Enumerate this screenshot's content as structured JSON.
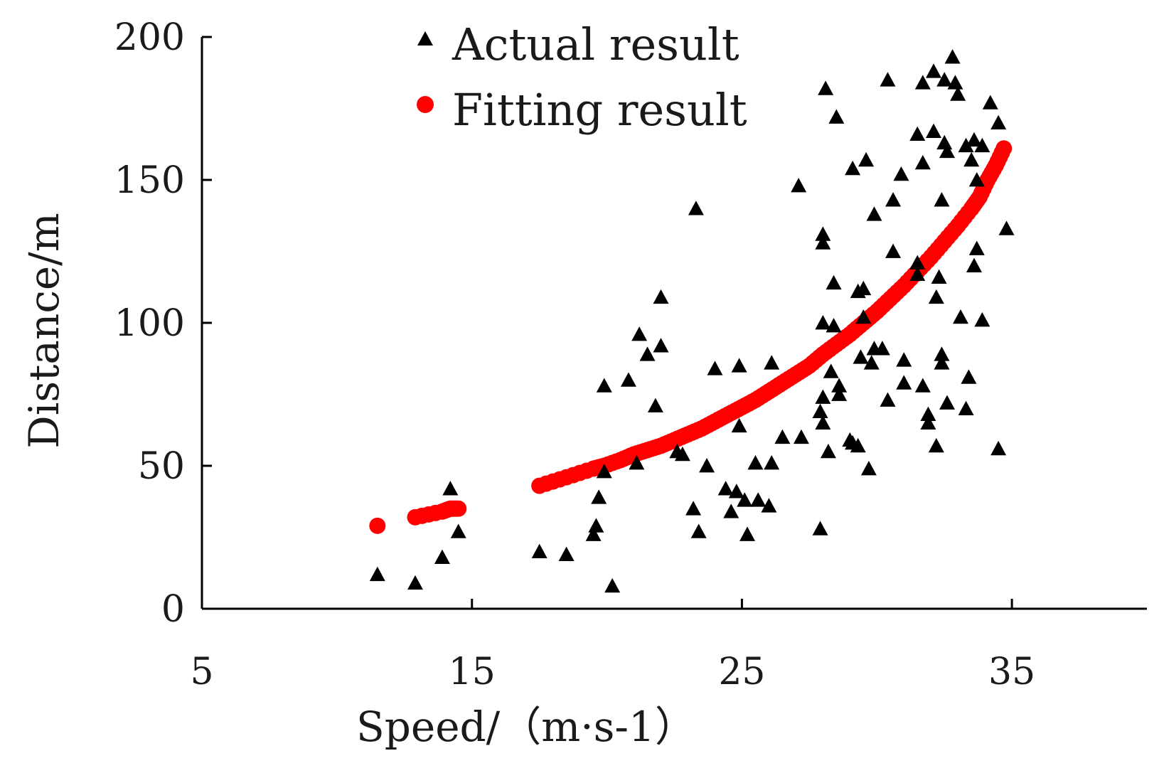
{
  "chart_data": {
    "type": "scatter",
    "title": "",
    "xlabel": "Speed/（m·s-1）",
    "ylabel": "Distance/m",
    "xlim": [
      5,
      40
    ],
    "ylim": [
      0,
      200
    ],
    "x_ticks": [
      5,
      15,
      25,
      35
    ],
    "y_ticks": [
      0,
      50,
      100,
      150,
      200
    ],
    "x_tick_labels": [
      "5",
      "15",
      "25",
      "35"
    ],
    "y_tick_labels": [
      "0",
      "50",
      "100",
      "150",
      "200"
    ],
    "grid": false,
    "legend": {
      "placement": "top-left-inside",
      "entries": [
        "Actual result",
        "Fitting result"
      ]
    },
    "series": [
      {
        "name": "Actual result",
        "marker": "triangle",
        "color": "#000000",
        "points": [
          [
            11.5,
            12
          ],
          [
            12.9,
            9
          ],
          [
            13.9,
            18
          ],
          [
            14.2,
            42
          ],
          [
            14.5,
            27
          ],
          [
            17.5,
            20
          ],
          [
            18.5,
            19
          ],
          [
            19.5,
            26
          ],
          [
            19.6,
            29
          ],
          [
            19.7,
            39
          ],
          [
            19.9,
            48
          ],
          [
            19.9,
            78
          ],
          [
            20.2,
            8
          ],
          [
            20.8,
            80
          ],
          [
            21.1,
            51
          ],
          [
            21.2,
            96
          ],
          [
            21.5,
            89
          ],
          [
            21.8,
            71
          ],
          [
            22.0,
            109
          ],
          [
            22.0,
            92
          ],
          [
            22.6,
            55
          ],
          [
            22.8,
            54
          ],
          [
            23.2,
            35
          ],
          [
            23.3,
            140
          ],
          [
            23.4,
            27
          ],
          [
            23.7,
            50
          ],
          [
            24.0,
            84
          ],
          [
            24.4,
            42
          ],
          [
            24.6,
            34
          ],
          [
            24.8,
            41
          ],
          [
            24.9,
            64
          ],
          [
            24.9,
            85
          ],
          [
            25.1,
            38
          ],
          [
            25.2,
            26
          ],
          [
            25.5,
            51
          ],
          [
            25.6,
            38
          ],
          [
            26.0,
            36
          ],
          [
            26.1,
            51
          ],
          [
            26.1,
            86
          ],
          [
            26.5,
            60
          ],
          [
            27.1,
            148
          ],
          [
            27.2,
            60
          ],
          [
            27.9,
            28
          ],
          [
            27.9,
            69
          ],
          [
            28.0,
            65
          ],
          [
            28.0,
            74
          ],
          [
            28.0,
            100
          ],
          [
            28.0,
            128
          ],
          [
            28.0,
            131
          ],
          [
            28.1,
            182
          ],
          [
            28.2,
            55
          ],
          [
            28.3,
            83
          ],
          [
            28.4,
            99
          ],
          [
            28.4,
            114
          ],
          [
            28.6,
            78
          ],
          [
            28.6,
            75
          ],
          [
            28.5,
            172
          ],
          [
            29.0,
            59
          ],
          [
            29.1,
            58
          ],
          [
            29.1,
            154
          ],
          [
            29.3,
            111
          ],
          [
            29.3,
            57
          ],
          [
            29.4,
            88
          ],
          [
            29.5,
            102
          ],
          [
            29.5,
            112
          ],
          [
            29.6,
            157
          ],
          [
            29.7,
            49
          ],
          [
            29.8,
            86
          ],
          [
            29.9,
            138
          ],
          [
            29.9,
            91
          ],
          [
            30.2,
            91
          ],
          [
            30.4,
            185
          ],
          [
            30.4,
            73
          ],
          [
            30.6,
            125
          ],
          [
            30.6,
            143
          ],
          [
            30.9,
            152
          ],
          [
            31.0,
            79
          ],
          [
            31.0,
            87
          ],
          [
            31.5,
            117
          ],
          [
            31.5,
            121
          ],
          [
            31.5,
            166
          ],
          [
            31.7,
            184
          ],
          [
            31.7,
            156
          ],
          [
            31.7,
            78
          ],
          [
            31.9,
            68
          ],
          [
            31.9,
            65
          ],
          [
            32.1,
            167
          ],
          [
            32.1,
            188
          ],
          [
            32.2,
            109
          ],
          [
            32.2,
            57
          ],
          [
            32.3,
            116
          ],
          [
            32.4,
            86
          ],
          [
            32.4,
            89
          ],
          [
            32.4,
            143
          ],
          [
            32.5,
            163
          ],
          [
            32.5,
            185
          ],
          [
            32.6,
            160
          ],
          [
            32.6,
            72
          ],
          [
            32.8,
            193
          ],
          [
            32.9,
            184
          ],
          [
            33.0,
            180
          ],
          [
            33.1,
            102
          ],
          [
            33.3,
            70
          ],
          [
            33.4,
            81
          ],
          [
            33.3,
            162
          ],
          [
            33.5,
            157
          ],
          [
            33.6,
            164
          ],
          [
            33.6,
            120
          ],
          [
            33.7,
            150
          ],
          [
            33.7,
            126
          ],
          [
            33.9,
            101
          ],
          [
            33.9,
            162
          ],
          [
            34.2,
            177
          ],
          [
            34.5,
            170
          ],
          [
            34.5,
            56
          ],
          [
            34.8,
            133
          ]
        ]
      },
      {
        "name": "Fitting result",
        "marker": "circle",
        "color": "#ff0000",
        "points": [
          [
            11.5,
            29
          ],
          [
            12.9,
            32
          ],
          [
            13.9,
            34
          ],
          [
            14.2,
            35
          ],
          [
            14.5,
            35
          ],
          [
            17.5,
            43
          ],
          [
            18.5,
            46
          ],
          [
            19.5,
            49
          ],
          [
            19.9,
            50
          ],
          [
            20.5,
            52
          ],
          [
            21.0,
            54
          ],
          [
            21.5,
            55.5
          ],
          [
            22.0,
            57
          ],
          [
            22.5,
            59
          ],
          [
            23.0,
            61
          ],
          [
            23.5,
            63
          ],
          [
            24.0,
            65.5
          ],
          [
            24.5,
            68
          ],
          [
            25.0,
            70.5
          ],
          [
            25.5,
            73
          ],
          [
            26.0,
            76
          ],
          [
            26.5,
            79
          ],
          [
            27.0,
            82
          ],
          [
            27.5,
            85
          ],
          [
            28.0,
            89
          ],
          [
            28.5,
            92.5
          ],
          [
            29.0,
            96
          ],
          [
            29.5,
            100
          ],
          [
            30.0,
            104
          ],
          [
            30.5,
            108.5
          ],
          [
            31.0,
            113
          ],
          [
            31.5,
            118
          ],
          [
            32.0,
            123
          ],
          [
            32.5,
            128.5
          ],
          [
            33.0,
            134
          ],
          [
            33.5,
            140
          ],
          [
            33.8,
            144
          ],
          [
            34.1,
            150
          ],
          [
            34.4,
            155
          ],
          [
            34.7,
            161
          ]
        ]
      }
    ]
  }
}
